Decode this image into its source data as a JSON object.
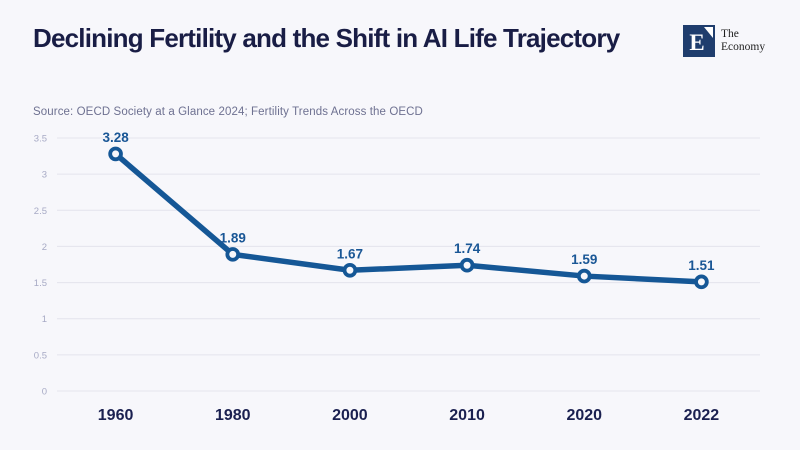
{
  "page": {
    "background": "#f7f7fb",
    "title_color": "#191d45",
    "source_color": "#6e7191"
  },
  "brand": {
    "logo_letter": "E",
    "logo_text_line1": "The",
    "logo_text_line2": "Economy",
    "logo_square_color": "#1f3d6d"
  },
  "chart_data": {
    "type": "line",
    "title": "Declining Fertility and the Shift in AI Life Trajectory",
    "source": "Source: OECD Society at a Glance 2024; Fertility Trends Across the OECD",
    "categories": [
      "1960",
      "1980",
      "2000",
      "2010",
      "2020",
      "2022"
    ],
    "values": [
      3.28,
      1.89,
      1.67,
      1.74,
      1.59,
      1.51
    ],
    "point_labels": [
      "3.28",
      "1.89",
      "1.67",
      "1.74",
      "1.59",
      "1.51"
    ],
    "y_tick_labels": [
      "0",
      "0.5",
      "1",
      "1.5",
      "2",
      "2.5",
      "3",
      "3.5"
    ],
    "ylim": [
      0,
      3.5
    ],
    "grid": true,
    "legend": "none",
    "xlabel": "",
    "ylabel": "",
    "style": {
      "line_color": "#155796",
      "marker_fill": "#f7f7fb",
      "point_label_color": "#1a5796",
      "x_label_color": "#1a2050",
      "y_tick_color": "#a7aac5",
      "grid_color": "#e4e4ec"
    }
  }
}
